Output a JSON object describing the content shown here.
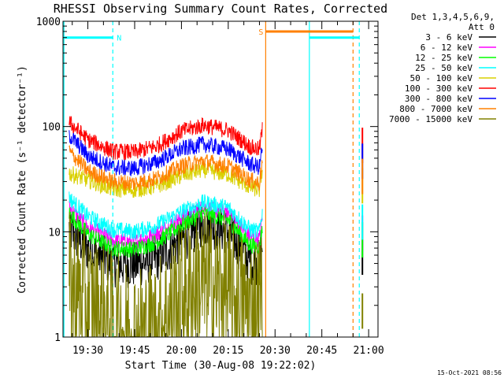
{
  "chart_data": {
    "type": "line",
    "title": "RHESSI Observing Summary Count Rates, Corrected",
    "xlabel": "Start Time (30-Aug-08 19:22:02)",
    "ylabel": "Corrected Count Rate (s⁻¹ detector⁻¹)",
    "y_scale": "log",
    "ylim": [
      1,
      1000
    ],
    "xlim": [
      "19:22:02",
      "21:03:00"
    ],
    "x_ticks": [
      "19:30",
      "19:45",
      "20:00",
      "20:15",
      "20:30",
      "20:45",
      "21:00"
    ],
    "y_ticks": [
      "1",
      "10",
      "100",
      "1000"
    ],
    "legend_placement": "right",
    "legend_header": [
      "Det 1,3,4,5,6,9,",
      "Att 0"
    ],
    "timestamp": "15-Oct-2021 08:56",
    "series": [
      {
        "name": "3 - 6 keV",
        "color": "#000000",
        "x": [
          "19:24",
          "19:30",
          "19:38",
          "19:45",
          "19:52",
          "20:00",
          "20:07",
          "20:15",
          "20:22",
          "20:25"
        ],
        "values": [
          10,
          6.5,
          4.7,
          4.6,
          5.3,
          8.0,
          11.5,
          9.5,
          5.0,
          4.8
        ]
      },
      {
        "name": "6 - 12 keV",
        "color": "#ff00ff",
        "x": [
          "19:24",
          "19:30",
          "19:38",
          "19:45",
          "19:52",
          "20:00",
          "20:07",
          "20:15",
          "20:22",
          "20:25"
        ],
        "values": [
          17,
          11,
          8.3,
          8.0,
          9.5,
          13.5,
          17.0,
          15.0,
          9.0,
          8.5
        ]
      },
      {
        "name": "12 - 25 keV",
        "color": "#00ff00",
        "x": [
          "19:24",
          "19:30",
          "19:38",
          "19:45",
          "19:52",
          "20:00",
          "20:07",
          "20:15",
          "20:22",
          "20:25"
        ],
        "values": [
          15,
          9.5,
          7.0,
          6.8,
          8.0,
          11.5,
          15.0,
          13.0,
          7.5,
          7.2
        ]
      },
      {
        "name": "25 - 50 keV",
        "color": "#00ffff",
        "x": [
          "19:24",
          "19:30",
          "19:38",
          "19:45",
          "19:52",
          "20:00",
          "20:07",
          "20:15",
          "20:22",
          "20:25"
        ],
        "values": [
          21,
          14,
          10.5,
          10.0,
          11.5,
          15.5,
          19.0,
          17.0,
          10.5,
          10.0
        ]
      },
      {
        "name": "50 - 100 keV",
        "color": "#d9d000",
        "x": [
          "19:24",
          "19:30",
          "19:38",
          "19:45",
          "19:52",
          "20:00",
          "20:07",
          "20:15",
          "20:22",
          "20:25"
        ],
        "values": [
          36,
          31,
          25.5,
          25.0,
          27.0,
          34.0,
          39.0,
          35.0,
          26.5,
          25.0
        ]
      },
      {
        "name": "100 - 300 keV",
        "color": "#ff0000",
        "x": [
          "19:24",
          "19:30",
          "19:38",
          "19:45",
          "19:52",
          "20:00",
          "20:07",
          "20:15",
          "20:22",
          "20:25"
        ],
        "values": [
          110,
          75,
          58,
          57,
          65,
          90,
          103,
          92,
          64,
          60
        ]
      },
      {
        "name": "300 - 800 keV",
        "color": "#0000ff",
        "x": [
          "19:24",
          "19:30",
          "19:38",
          "19:45",
          "19:52",
          "20:00",
          "20:07",
          "20:15",
          "20:22",
          "20:25"
        ],
        "values": [
          83,
          53,
          41,
          40,
          46,
          61,
          68,
          61,
          44,
          41
        ]
      },
      {
        "name": "800 - 7000 keV",
        "color": "#ff8000",
        "x": [
          "19:24",
          "19:30",
          "19:38",
          "19:45",
          "19:52",
          "20:00",
          "20:07",
          "20:15",
          "20:22",
          "20:25"
        ],
        "values": [
          58,
          38,
          30,
          29,
          32,
          42,
          47,
          42,
          31,
          29
        ]
      },
      {
        "name": "7000 - 15000 keV",
        "color": "#808000",
        "x": [
          "19:24",
          "19:30",
          "19:38",
          "19:45",
          "19:52",
          "20:00",
          "20:07",
          "20:15",
          "20:22",
          "20:25"
        ],
        "values": [
          3.0,
          2.0,
          1.3,
          1.0,
          1.1,
          2.5,
          3.2,
          2.6,
          1.8,
          2.0
        ]
      }
    ],
    "flags": [
      {
        "name": "N",
        "label": "N",
        "color": "#00ffff",
        "x_start": "19:22",
        "x_end": "19:38",
        "value": 700
      },
      {
        "name": "S",
        "label": "S",
        "color": "#ff8000",
        "x_start": "20:27",
        "x_end": "20:55",
        "value": 800
      },
      {
        "name": "eclipse",
        "label": "",
        "color": "#00ffff",
        "x_start": "20:41",
        "x_end": "20:57",
        "value": 700
      }
    ]
  }
}
